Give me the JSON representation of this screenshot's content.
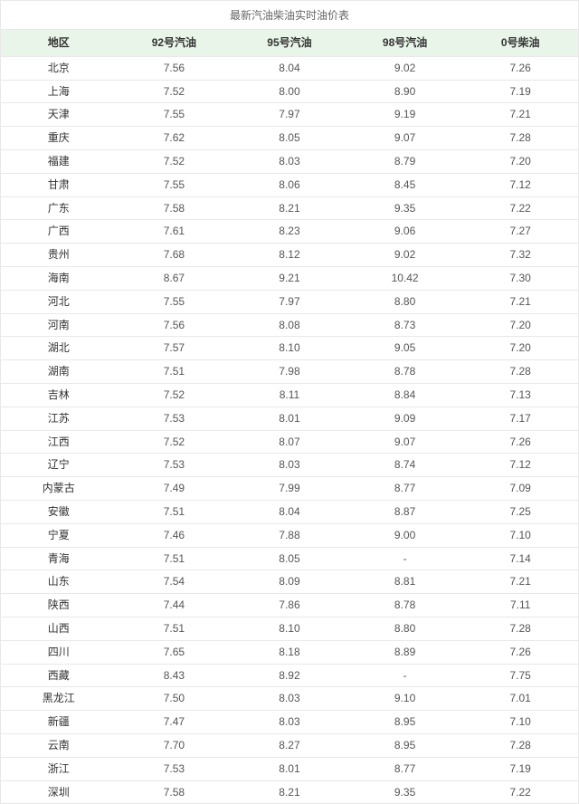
{
  "title": "最新汽油柴油实时油价表",
  "columns": [
    "地区",
    "92号汽油",
    "95号汽油",
    "98号汽油",
    "0号柴油"
  ],
  "header_bg": "#e9f5e9",
  "border_color": "#e8e8e8",
  "rows": [
    [
      "北京",
      "7.56",
      "8.04",
      "9.02",
      "7.26"
    ],
    [
      "上海",
      "7.52",
      "8.00",
      "8.90",
      "7.19"
    ],
    [
      "天津",
      "7.55",
      "7.97",
      "9.19",
      "7.21"
    ],
    [
      "重庆",
      "7.62",
      "8.05",
      "9.07",
      "7.28"
    ],
    [
      "福建",
      "7.52",
      "8.03",
      "8.79",
      "7.20"
    ],
    [
      "甘肃",
      "7.55",
      "8.06",
      "8.45",
      "7.12"
    ],
    [
      "广东",
      "7.58",
      "8.21",
      "9.35",
      "7.22"
    ],
    [
      "广西",
      "7.61",
      "8.23",
      "9.06",
      "7.27"
    ],
    [
      "贵州",
      "7.68",
      "8.12",
      "9.02",
      "7.32"
    ],
    [
      "海南",
      "8.67",
      "9.21",
      "10.42",
      "7.30"
    ],
    [
      "河北",
      "7.55",
      "7.97",
      "8.80",
      "7.21"
    ],
    [
      "河南",
      "7.56",
      "8.08",
      "8.73",
      "7.20"
    ],
    [
      "湖北",
      "7.57",
      "8.10",
      "9.05",
      "7.20"
    ],
    [
      "湖南",
      "7.51",
      "7.98",
      "8.78",
      "7.28"
    ],
    [
      "吉林",
      "7.52",
      "8.11",
      "8.84",
      "7.13"
    ],
    [
      "江苏",
      "7.53",
      "8.01",
      "9.09",
      "7.17"
    ],
    [
      "江西",
      "7.52",
      "8.07",
      "9.07",
      "7.26"
    ],
    [
      "辽宁",
      "7.53",
      "8.03",
      "8.74",
      "7.12"
    ],
    [
      "内蒙古",
      "7.49",
      "7.99",
      "8.77",
      "7.09"
    ],
    [
      "安徽",
      "7.51",
      "8.04",
      "8.87",
      "7.25"
    ],
    [
      "宁夏",
      "7.46",
      "7.88",
      "9.00",
      "7.10"
    ],
    [
      "青海",
      "7.51",
      "8.05",
      "-",
      "7.14"
    ],
    [
      "山东",
      "7.54",
      "8.09",
      "8.81",
      "7.21"
    ],
    [
      "陕西",
      "7.44",
      "7.86",
      "8.78",
      "7.11"
    ],
    [
      "山西",
      "7.51",
      "8.10",
      "8.80",
      "7.28"
    ],
    [
      "四川",
      "7.65",
      "8.18",
      "8.89",
      "7.26"
    ],
    [
      "西藏",
      "8.43",
      "8.92",
      "-",
      "7.75"
    ],
    [
      "黑龙江",
      "7.50",
      "8.03",
      "9.10",
      "7.01"
    ],
    [
      "新疆",
      "7.47",
      "8.03",
      "8.95",
      "7.10"
    ],
    [
      "云南",
      "7.70",
      "8.27",
      "8.95",
      "7.28"
    ],
    [
      "浙江",
      "7.53",
      "8.01",
      "8.77",
      "7.19"
    ],
    [
      "深圳",
      "7.58",
      "8.21",
      "9.35",
      "7.22"
    ]
  ]
}
